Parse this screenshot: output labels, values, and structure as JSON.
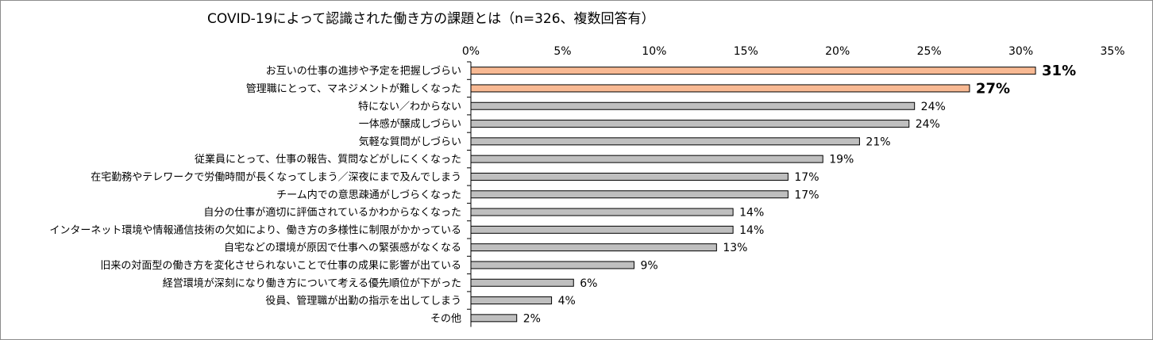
{
  "chart_data": {
    "type": "bar",
    "orientation": "horizontal",
    "title": "COVID-19によって認識された働き方の課題とは（n=326、複数回答有）",
    "xlim": [
      0,
      35
    ],
    "xticks": [
      0,
      5,
      10,
      15,
      20,
      25,
      30,
      35
    ],
    "tick_suffix": "%",
    "grid": false,
    "legend": "none",
    "colors": {
      "default_bar": "#bfbfbf",
      "highlight_bar": "#f8b993",
      "highlight_label": "#ed7d31",
      "bar_edge": "#000000"
    },
    "categories": [
      "お互いの仕事の進捗や予定を把握しづらい",
      "管理職にとって、マネジメントが難しくなった",
      "特にない／わからない",
      "一体感が醸成しづらい",
      "気軽な質問がしづらい",
      "従業員にとって、仕事の報告、質問などがしにくくなった",
      "在宅勤務やテレワークで労働時間が長くなってしまう／深夜にまで及んでしまう",
      "チーム内での意思疎通がしづらくなった",
      "自分の仕事が適切に評価されているかわからなくなった",
      "インターネット環境や情報通信技術の欠如により、働き方の多様性に制限がかかっている",
      "自宅などの環境が原因で仕事への緊張感がなくなる",
      "旧来の対面型の働き方を変化させられないことで仕事の成果に影響が出ている",
      "経営環境が深刻になり働き方について考える優先順位が下がった",
      "役員、管理職が出勤の指示を出してしまう",
      "その他"
    ],
    "values": [
      30.8,
      27.2,
      24.2,
      23.9,
      21.2,
      19.2,
      17.3,
      17.3,
      14.3,
      14.3,
      13.4,
      8.9,
      5.6,
      4.4,
      2.5
    ],
    "value_labels": [
      "31%",
      "27%",
      "24%",
      "24%",
      "21%",
      "19%",
      "17%",
      "17%",
      "14%",
      "14%",
      "13%",
      "9%",
      "6%",
      "4%",
      "2%"
    ],
    "highlight": [
      true,
      true,
      false,
      false,
      false,
      false,
      false,
      false,
      false,
      false,
      false,
      false,
      false,
      false,
      false
    ]
  }
}
